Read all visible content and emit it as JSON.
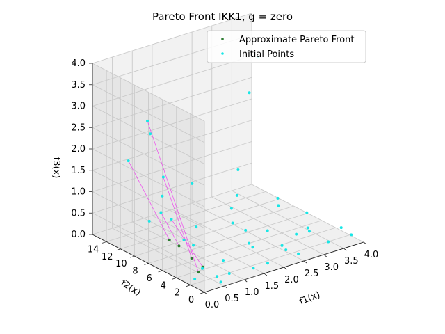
{
  "chart_data": {
    "type": "scatter",
    "projection": "3d",
    "title": "Pareto Front IKK1, g = zero",
    "xlabel": "f1(x)",
    "ylabel": "f2(x)",
    "zlabel": "f3(x)",
    "xlim": [
      0,
      4
    ],
    "ylim": [
      0,
      16
    ],
    "zlim": [
      0,
      4
    ],
    "xticks": [
      "0.0",
      "0.5",
      "1.0",
      "1.5",
      "2.0",
      "2.5",
      "3.0",
      "3.5",
      "4.0"
    ],
    "yticks": [
      "0",
      "2",
      "4",
      "6",
      "8",
      "10",
      "12",
      "14"
    ],
    "zticks": [
      "0.0",
      "0.5",
      "1.0",
      "1.5",
      "2.0",
      "2.5",
      "3.0",
      "3.5",
      "4.0"
    ],
    "grid": true,
    "legend": {
      "placement": "upper-right",
      "entries": [
        "Approximate Pareto Front",
        "Initial Points"
      ]
    },
    "colors": {
      "pareto": "#2e7d32",
      "initial": "#18e6e6",
      "connector": "#ee44ee"
    },
    "series": [
      {
        "name": "Approximate Pareto Front",
        "points": [
          [
            0.06,
            1.2,
            0.35
          ],
          [
            0.12,
            2.5,
            0.55
          ],
          [
            0.0,
            5.0,
            0.8
          ],
          [
            0.22,
            1.5,
            0.4
          ],
          [
            0.1,
            4.2,
            0.7
          ]
        ]
      },
      {
        "name": "Initial Points",
        "points": [
          [
            0.5,
            0.5,
            0.05
          ],
          [
            0.8,
            1.0,
            0.12
          ],
          [
            1.3,
            0.4,
            0.15
          ],
          [
            1.8,
            1.2,
            0.05
          ],
          [
            2.5,
            0.8,
            0.1
          ],
          [
            3.2,
            0.5,
            0.2
          ],
          [
            3.7,
            1.5,
            0.3
          ],
          [
            3.9,
            1.2,
            0.1
          ],
          [
            0.3,
            2.0,
            0.3
          ],
          [
            1.0,
            3.0,
            0.2
          ],
          [
            1.6,
            2.2,
            0.4
          ],
          [
            2.2,
            3.5,
            0.5
          ],
          [
            2.8,
            2.8,
            0.3
          ],
          [
            3.3,
            4.0,
            0.2
          ],
          [
            0.6,
            5.0,
            0.5
          ],
          [
            1.5,
            4.5,
            0.8
          ],
          [
            2.0,
            5.5,
            0.4
          ],
          [
            3.0,
            6.5,
            0.6
          ],
          [
            0.4,
            7.0,
            1.0
          ],
          [
            1.2,
            8.0,
            0.5
          ],
          [
            2.4,
            9.0,
            0.8
          ],
          [
            3.6,
            10.0,
            0.3
          ],
          [
            0.9,
            11.0,
            1.5
          ],
          [
            1.8,
            12.0,
            1.0
          ],
          [
            3.5,
            13.5,
            2.5
          ],
          [
            3.8,
            14.0,
            3.2
          ],
          [
            0.2,
            12.0,
            2.0
          ],
          [
            1.1,
            14.0,
            2.2
          ],
          [
            0.7,
            10.0,
            1.2
          ],
          [
            1.9,
            6.0,
            1.8
          ],
          [
            2.7,
            11.5,
            0.2
          ],
          [
            0.1,
            3.5,
            0.9
          ],
          [
            1.4,
            1.6,
            0.6
          ],
          [
            2.3,
            2.0,
            0.25
          ],
          [
            3.1,
            3.0,
            0.7
          ],
          [
            0.35,
            0.2,
            0.25
          ],
          [
            0.05,
            6.5,
            1.3
          ],
          [
            0.15,
            9.0,
            3.2
          ],
          [
            0.9,
            13.0,
            0.3
          ],
          [
            2.1,
            0.3,
            0.35
          ],
          [
            2.9,
            1.5,
            0.45
          ],
          [
            0.25,
            2.8,
            0.0
          ]
        ]
      }
    ],
    "connectors": [
      [
        [
          0.06,
          1.2,
          0.35
        ],
        [
          0.15,
          9.0,
          3.2
        ]
      ],
      [
        [
          0.12,
          2.5,
          0.55
        ],
        [
          0.9,
          11.0,
          1.5
        ]
      ],
      [
        [
          0.0,
          5.0,
          0.8
        ],
        [
          0.2,
          12.0,
          2.0
        ]
      ],
      [
        [
          0.22,
          1.5,
          0.4
        ],
        [
          0.4,
          7.0,
          1.0
        ]
      ],
      [
        [
          0.1,
          4.2,
          0.7
        ],
        [
          0.05,
          6.5,
          1.3
        ]
      ]
    ]
  }
}
